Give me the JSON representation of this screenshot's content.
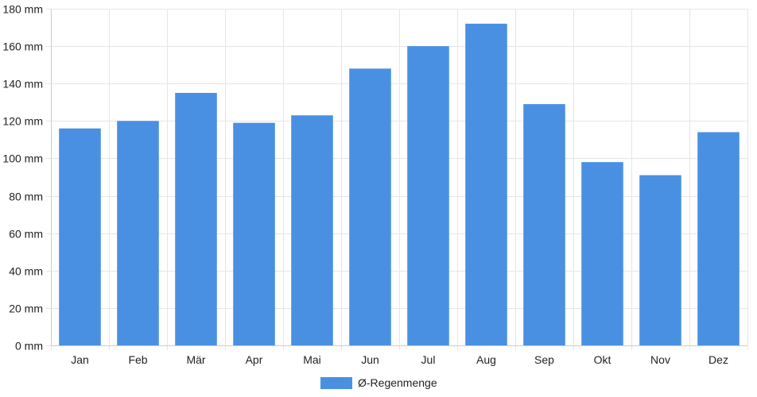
{
  "chart_data": {
    "type": "bar",
    "categories": [
      "Jan",
      "Feb",
      "Mär",
      "Apr",
      "Mai",
      "Jun",
      "Jul",
      "Aug",
      "Sep",
      "Okt",
      "Nov",
      "Dez"
    ],
    "series": [
      {
        "name": "Ø-Regenmenge",
        "color": "#4a90e2",
        "values": [
          116,
          120,
          135,
          119,
          123,
          148,
          160,
          172,
          129,
          98,
          91,
          114
        ]
      }
    ],
    "ylim": [
      0,
      180
    ],
    "y_ticks": [
      0,
      20,
      40,
      60,
      80,
      100,
      120,
      140,
      160,
      180
    ],
    "y_tick_unit": "mm",
    "y_tick_labels": [
      "0 mm",
      "20 mm",
      "40 mm",
      "60 mm",
      "80 mm",
      "100 mm",
      "120 mm",
      "140 mm",
      "160 mm",
      "180 mm"
    ],
    "grid": true,
    "legend_position": "bottom-center",
    "colors": {
      "bar": "#4a90e2",
      "grid": "#e6e6e6",
      "axis": "#cccccc",
      "text": "#222222"
    }
  }
}
